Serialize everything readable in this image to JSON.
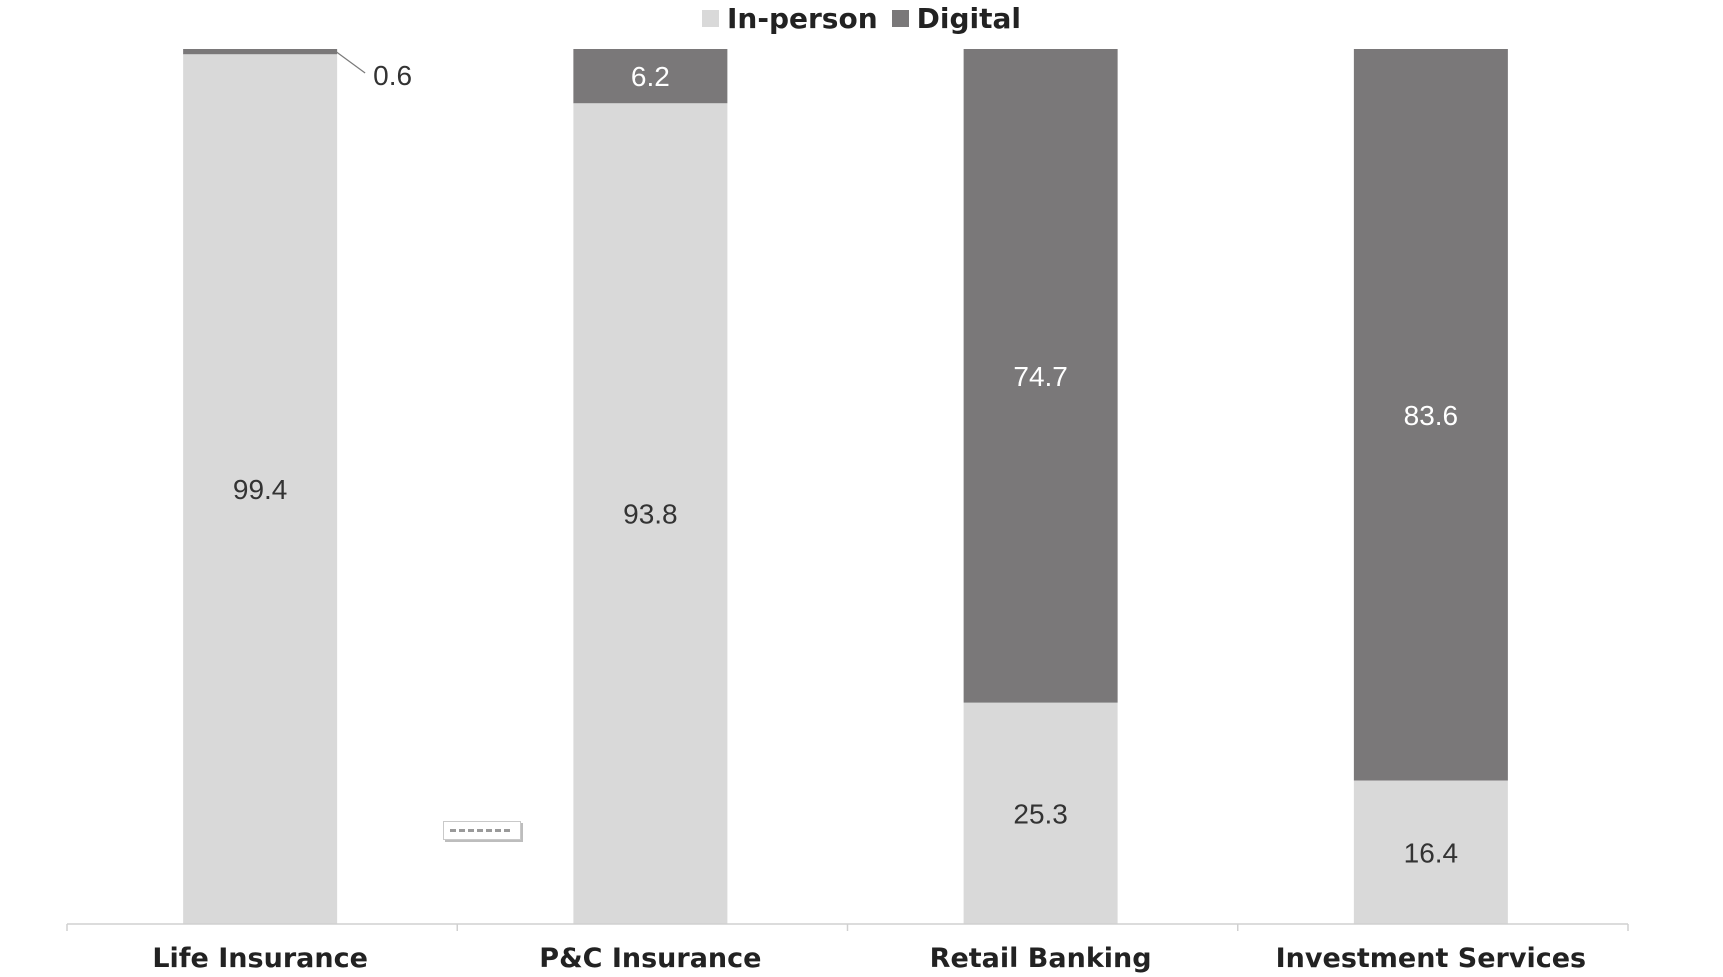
{
  "legend": {
    "items": [
      {
        "label": "In-person",
        "color": "#d9d9d9"
      },
      {
        "label": "Digital",
        "color": "#7a7879"
      }
    ]
  },
  "chart_data": {
    "type": "bar",
    "stacked": true,
    "title": "",
    "xlabel": "",
    "ylabel": "",
    "ylim": [
      0,
      100
    ],
    "grid": true,
    "legend_position": "top-center",
    "categories": [
      "Life Insurance",
      "P&C Insurance",
      "Retail Banking",
      "Investment Services"
    ],
    "series": [
      {
        "name": "In-person",
        "color": "#d9d9d9",
        "values": [
          99.4,
          93.8,
          25.3,
          16.4
        ],
        "labels": [
          "99.4",
          "93.8",
          "25.3",
          "16.4"
        ]
      },
      {
        "name": "Digital",
        "color": "#7a7879",
        "values": [
          0.6,
          6.2,
          74.7,
          83.6
        ],
        "labels": [
          "0.6",
          "6.2",
          "74.7",
          "83.6"
        ]
      }
    ]
  }
}
